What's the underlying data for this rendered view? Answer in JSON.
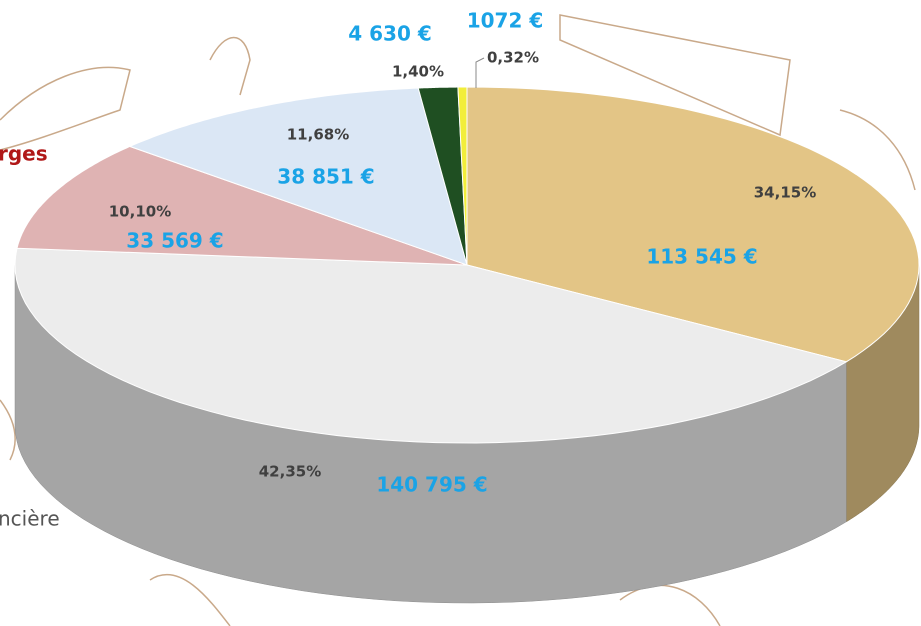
{
  "chart_data": {
    "type": "pie3d",
    "values": [
      34.15,
      42.35,
      10.1,
      11.68,
      1.4,
      0.32
    ],
    "value_labels": [
      "34,15%",
      "42,35%",
      "10,10%",
      "11,68%",
      "1,40%",
      "0,32%"
    ],
    "amounts": [
      113545,
      140795,
      33569,
      38851,
      4630,
      1072
    ],
    "amount_labels": [
      "113 545 €",
      "140 795 €",
      "33 569 €",
      "38 851 €",
      "4 630 €",
      "1072 €"
    ],
    "colors": [
      "#e3c586",
      "#ececec",
      "#dfb3b3",
      "#dbe7f5",
      "#1f4f22",
      "#f2ee3a"
    ],
    "annotations": [
      "rges",
      "ncière"
    ]
  }
}
